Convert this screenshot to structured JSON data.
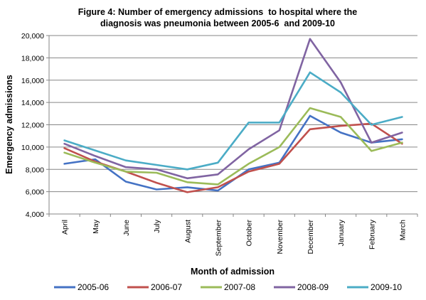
{
  "chart_data": {
    "type": "line",
    "title_line1": "Figure 4: Number of emergency admissions  to hospital where the",
    "title_line2": "diagnosis was pneumonia between 2005-6  and 2009-10",
    "xlabel": "Month of admission",
    "ylabel": "Emergency admissions",
    "ylim": [
      4000,
      20000
    ],
    "yticks": [
      4000,
      6000,
      8000,
      10000,
      12000,
      14000,
      16000,
      18000,
      20000
    ],
    "ytick_labels": [
      "4,000",
      "6,000",
      "8,000",
      "10,000",
      "12,000",
      "14,000",
      "16,000",
      "18,000",
      "20,000"
    ],
    "grid": true,
    "legend_position": "bottom",
    "categories": [
      "April",
      "May",
      "June",
      "July",
      "August",
      "September",
      "October",
      "November",
      "December",
      "January",
      "February",
      "March"
    ],
    "series": [
      {
        "name": "2005-06",
        "color": "#4472C4",
        "values": [
          8500,
          8900,
          6900,
          6200,
          6400,
          6100,
          8000,
          8600,
          12800,
          11300,
          10400,
          10700
        ]
      },
      {
        "name": "2006-07",
        "color": "#C0504D",
        "values": [
          9900,
          8700,
          7800,
          6800,
          5950,
          6400,
          7800,
          8500,
          11600,
          11900,
          12100,
          10300
        ]
      },
      {
        "name": "2007-08",
        "color": "#9BBB59",
        "values": [
          9500,
          8600,
          7800,
          7700,
          6850,
          6650,
          8500,
          10000,
          13500,
          12700,
          9650,
          10400
        ]
      },
      {
        "name": "2008-09",
        "color": "#8064A2",
        "values": [
          10300,
          9200,
          8200,
          8000,
          7200,
          7550,
          9800,
          11500,
          19700,
          15800,
          10400,
          11300
        ]
      },
      {
        "name": "2009-10",
        "color": "#4BACC6",
        "values": [
          10600,
          9700,
          8800,
          8400,
          8000,
          8600,
          12200,
          12200,
          16700,
          14900,
          12000,
          12700
        ]
      }
    ]
  }
}
